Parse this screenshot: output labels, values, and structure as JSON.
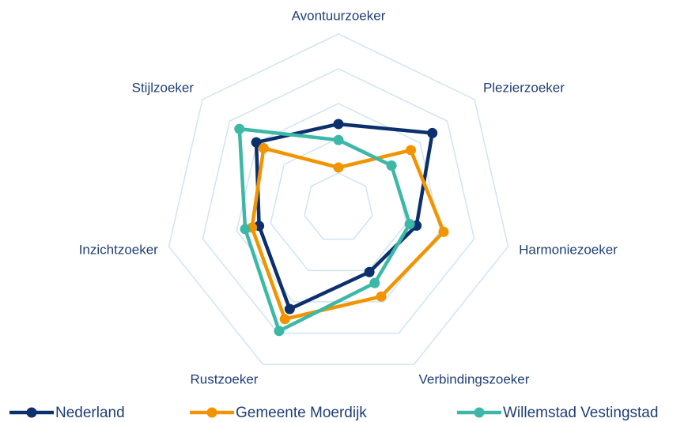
{
  "chart_data": {
    "type": "radar",
    "categories": [
      "Avontuurzoeker",
      "Plezierzoeker",
      "Harmoniezoeker",
      "Verbindingszoeker",
      "Rustzoeker",
      "Inzichtzoeker",
      "Stijlzoeker"
    ],
    "series": [
      {
        "name": "Nederland",
        "color": "#0c2f6d",
        "values": [
          2.41,
          3.45,
          2.3,
          2.05,
          3.23,
          2.34,
          3.02
        ]
      },
      {
        "name": "Gemeente Moerdijk",
        "color": "#f29400",
        "values": [
          1.16,
          2.66,
          3.1,
          2.83,
          3.55,
          2.55,
          2.75
        ]
      },
      {
        "name": "Willemstad Vestingstad",
        "color": "#3db8a6",
        "values": [
          1.95,
          1.95,
          2.1,
          2.4,
          3.93,
          2.75,
          3.64
        ]
      }
    ],
    "rlim": [
      0,
      5
    ],
    "rticks": [
      1,
      2,
      3,
      4,
      5
    ],
    "grid": true,
    "grid_color": "#cfe4f6",
    "legend": "bottom"
  }
}
